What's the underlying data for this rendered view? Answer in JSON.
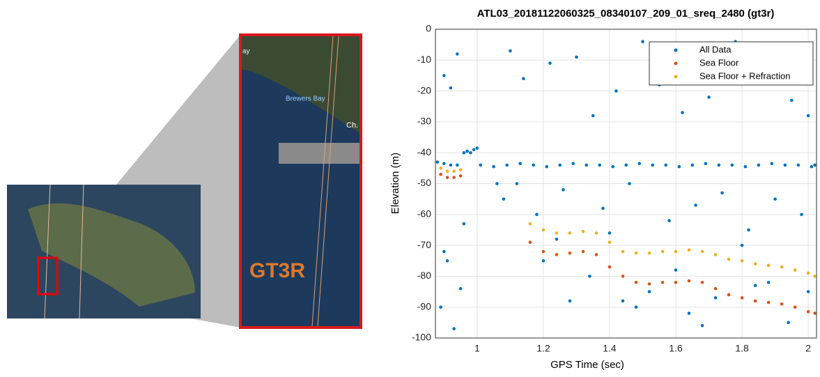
{
  "inset": {
    "labels": [
      "ay",
      "Brewers Bay",
      "Ch.",
      "GT3R"
    ]
  },
  "chart_data": {
    "type": "scatter",
    "title": "ATL03_20181122060325_08340107_209_01_sreq_2480 (gt3r)",
    "x_label": "GPS Time (sec)",
    "y_label": "Elevation (m)",
    "xlim": [
      0.874,
      2.025
    ],
    "ylim": [
      -100,
      0
    ],
    "xticks": [
      1,
      1.2,
      1.4,
      1.6,
      1.8,
      2
    ],
    "yticks": [
      0,
      -10,
      -20,
      -30,
      -40,
      -50,
      -60,
      -70,
      -80,
      -90,
      -100
    ],
    "grid": true,
    "legend": "upper right",
    "series": [
      {
        "name": "All Data",
        "color": "#0072bd",
        "x": [
          0.88,
          0.9,
          0.92,
          0.94,
          0.96,
          0.97,
          0.98,
          0.99,
          1.0,
          1.01,
          1.05,
          1.09,
          1.13,
          1.17,
          1.21,
          1.25,
          1.29,
          1.33,
          1.37,
          1.41,
          1.45,
          1.49,
          1.53,
          1.57,
          1.61,
          1.65,
          1.69,
          1.73,
          1.77,
          1.81,
          1.85,
          1.89,
          1.93,
          1.97,
          2.01,
          2.02,
          0.9,
          0.92,
          0.94,
          0.96,
          0.91,
          0.89,
          0.93,
          1.1,
          1.14,
          1.22,
          1.3,
          1.35,
          1.42,
          1.5,
          1.55,
          1.62,
          1.7,
          1.78,
          1.86,
          1.95,
          2.0,
          1.08,
          1.18,
          1.26,
          1.38,
          1.46,
          1.58,
          1.66,
          1.74,
          1.82,
          1.9,
          1.98,
          1.12,
          1.24,
          1.34,
          1.44,
          1.52,
          1.64,
          1.72,
          1.84,
          1.94,
          0.9,
          0.95,
          1.06,
          1.2,
          1.4,
          1.6,
          1.8,
          2.0,
          1.28,
          1.48,
          1.68,
          1.88
        ],
        "values": [
          -43,
          -43.5,
          -44,
          -44,
          -40,
          -39.5,
          -40,
          -39,
          -38.5,
          -44,
          -44.5,
          -44,
          -43.5,
          -44,
          -44.5,
          -44,
          -43.5,
          -44,
          -44,
          -44.5,
          -44,
          -43.5,
          -44,
          -44,
          -44.5,
          -44,
          -43.5,
          -44,
          -44,
          -44.5,
          -44,
          -43.5,
          -44,
          -44,
          -44.5,
          -44,
          -15,
          -19,
          -8,
          -63,
          -75,
          -90,
          -97,
          -7,
          -16,
          -11,
          -9,
          -28,
          -20,
          -4,
          -18,
          -27,
          -22,
          -4,
          -10,
          -23,
          -28,
          -55,
          -60,
          -52,
          -58,
          -50,
          -62,
          -57,
          -53,
          -65,
          -55,
          -60,
          -50,
          -68,
          -80,
          -88,
          -85,
          -92,
          -87,
          -83,
          -95,
          -72,
          -84,
          -50,
          -75,
          -66,
          -78,
          -70,
          -85,
          -88,
          -90,
          -96,
          -82
        ]
      },
      {
        "name": "Sea Floor",
        "color": "#d95319",
        "x": [
          0.89,
          0.91,
          0.93,
          0.95,
          1.16,
          1.2,
          1.24,
          1.28,
          1.32,
          1.36,
          1.4,
          1.44,
          1.48,
          1.52,
          1.56,
          1.6,
          1.64,
          1.68,
          1.72,
          1.76,
          1.8,
          1.84,
          1.88,
          1.92,
          1.96,
          2.0,
          2.02
        ],
        "values": [
          -47,
          -48,
          -48,
          -47.5,
          -69,
          -72,
          -73,
          -72.5,
          -72,
          -73,
          -77,
          -80,
          -82,
          -82.5,
          -82,
          -82,
          -81.5,
          -82,
          -84,
          -86,
          -87,
          -88,
          -88.5,
          -89,
          -90,
          -91.5,
          -92
        ]
      },
      {
        "name": "Sea Floor + Refraction",
        "color": "#edb120",
        "x": [
          0.89,
          0.91,
          0.93,
          0.95,
          1.16,
          1.2,
          1.24,
          1.28,
          1.32,
          1.36,
          1.4,
          1.44,
          1.48,
          1.52,
          1.56,
          1.6,
          1.64,
          1.68,
          1.72,
          1.76,
          1.8,
          1.84,
          1.88,
          1.92,
          1.96,
          2.0,
          2.02
        ],
        "values": [
          -45,
          -46,
          -46,
          -45.5,
          -63,
          -65,
          -66,
          -66,
          -65.5,
          -66,
          -69,
          -72,
          -72.5,
          -72.5,
          -72,
          -72,
          -71.5,
          -72,
          -73,
          -74.5,
          -75,
          -76,
          -76.5,
          -77,
          -78,
          -79,
          -80
        ]
      }
    ]
  }
}
